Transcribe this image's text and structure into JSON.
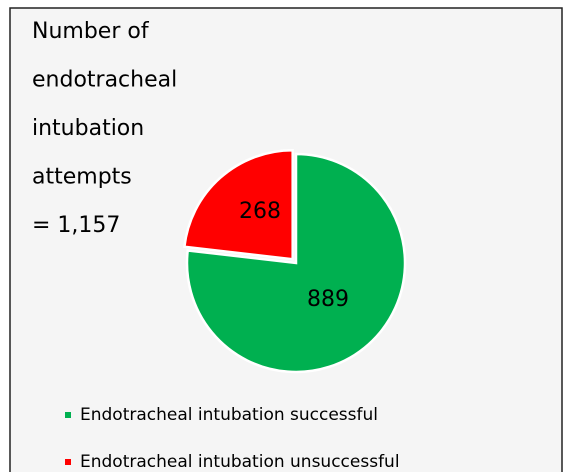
{
  "chart_data": {
    "type": "pie",
    "title": [
      "Number of",
      "endotracheal",
      "intubation",
      "attempts",
      "= 1,157"
    ],
    "categories": [
      "Endotracheal intubation successful",
      "Endotracheal intubation unsuccessful"
    ],
    "values": [
      889,
      268
    ],
    "colors": [
      "#00b050",
      "#ff0000"
    ]
  }
}
